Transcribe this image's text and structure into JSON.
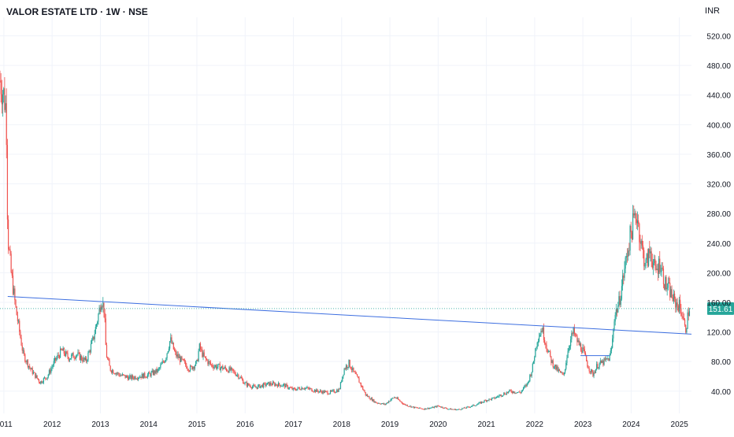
{
  "header": {
    "title": "VALOR ESTATE LTD · 1W · NSE",
    "currency": "INR"
  },
  "colors": {
    "up": "#26a69a",
    "down": "#ef5350",
    "trendline": "#3d6fe0",
    "price_line": "#26a69a",
    "grid": "#f0f3fa",
    "text": "#131722"
  },
  "chart_data": {
    "type": "candlestick",
    "title": "VALOR ESTATE LTD · 1W · NSE",
    "ylabel": "INR",
    "ylim": [
      10,
      545
    ],
    "y_ticks": [
      40,
      80,
      120,
      160,
      200,
      240,
      280,
      320,
      360,
      400,
      440,
      480,
      520
    ],
    "y_tick_labels": [
      "40.00",
      "80.00",
      "120.00",
      "160.00",
      "200.00",
      "240.00",
      "280.00",
      "320.00",
      "360.00",
      "400.00",
      "440.00",
      "480.00",
      "520.00"
    ],
    "x_range": [
      2010.92,
      2025.25
    ],
    "x_ticks": [
      2011,
      2012,
      2013,
      2014,
      2015,
      2016,
      2017,
      2018,
      2019,
      2020,
      2021,
      2022,
      2023,
      2024,
      2025
    ],
    "x_tick_labels": [
      "2011",
      "2012",
      "2013",
      "2014",
      "2015",
      "2016",
      "2017",
      "2018",
      "2019",
      "2020",
      "2021",
      "2022",
      "2023",
      "2024",
      "2025"
    ],
    "last_price": 151.61,
    "last_price_label": "151.61",
    "close_path": [
      [
        2010.92,
        460
      ],
      [
        2011.0,
        440
      ],
      [
        2011.05,
        420
      ],
      [
        2011.08,
        250
      ],
      [
        2011.15,
        200
      ],
      [
        2011.25,
        150
      ],
      [
        2011.4,
        90
      ],
      [
        2011.55,
        70
      ],
      [
        2011.75,
        52
      ],
      [
        2011.9,
        60
      ],
      [
        2012.05,
        80
      ],
      [
        2012.2,
        95
      ],
      [
        2012.35,
        85
      ],
      [
        2012.5,
        90
      ],
      [
        2012.7,
        80
      ],
      [
        2012.85,
        110
      ],
      [
        2012.95,
        140
      ],
      [
        2013.02,
        165
      ],
      [
        2013.08,
        150
      ],
      [
        2013.12,
        90
      ],
      [
        2013.2,
        70
      ],
      [
        2013.4,
        62
      ],
      [
        2013.6,
        58
      ],
      [
        2013.8,
        60
      ],
      [
        2014.0,
        62
      ],
      [
        2014.2,
        68
      ],
      [
        2014.35,
        85
      ],
      [
        2014.45,
        110
      ],
      [
        2014.55,
        90
      ],
      [
        2014.7,
        80
      ],
      [
        2014.85,
        70
      ],
      [
        2015.0,
        78
      ],
      [
        2015.05,
        100
      ],
      [
        2015.15,
        85
      ],
      [
        2015.3,
        75
      ],
      [
        2015.5,
        72
      ],
      [
        2015.7,
        68
      ],
      [
        2015.85,
        62
      ],
      [
        2016.0,
        50
      ],
      [
        2016.2,
        45
      ],
      [
        2016.5,
        50
      ],
      [
        2016.8,
        48
      ],
      [
        2017.0,
        42
      ],
      [
        2017.2,
        45
      ],
      [
        2017.5,
        40
      ],
      [
        2017.75,
        38
      ],
      [
        2017.95,
        42
      ],
      [
        2018.05,
        70
      ],
      [
        2018.15,
        78
      ],
      [
        2018.25,
        65
      ],
      [
        2018.35,
        55
      ],
      [
        2018.5,
        35
      ],
      [
        2018.7,
        25
      ],
      [
        2018.9,
        22
      ],
      [
        2019.0,
        28
      ],
      [
        2019.1,
        32
      ],
      [
        2019.3,
        22
      ],
      [
        2019.5,
        18
      ],
      [
        2019.7,
        16
      ],
      [
        2019.9,
        18
      ],
      [
        2020.0,
        20
      ],
      [
        2020.2,
        16
      ],
      [
        2020.4,
        15
      ],
      [
        2020.6,
        18
      ],
      [
        2020.8,
        22
      ],
      [
        2021.0,
        28
      ],
      [
        2021.15,
        30
      ],
      [
        2021.3,
        35
      ],
      [
        2021.5,
        40
      ],
      [
        2021.7,
        38
      ],
      [
        2021.85,
        50
      ],
      [
        2021.95,
        70
      ],
      [
        2022.05,
        110
      ],
      [
        2022.15,
        125
      ],
      [
        2022.25,
        100
      ],
      [
        2022.35,
        80
      ],
      [
        2022.45,
        70
      ],
      [
        2022.6,
        60
      ],
      [
        2022.7,
        100
      ],
      [
        2022.8,
        120
      ],
      [
        2022.9,
        105
      ],
      [
        2023.0,
        95
      ],
      [
        2023.1,
        75
      ],
      [
        2023.2,
        62
      ],
      [
        2023.3,
        75
      ],
      [
        2023.45,
        80
      ],
      [
        2023.55,
        85
      ],
      [
        2023.6,
        100
      ],
      [
        2023.65,
        140
      ],
      [
        2023.75,
        160
      ],
      [
        2023.85,
        200
      ],
      [
        2023.95,
        240
      ],
      [
        2024.05,
        270
      ],
      [
        2024.12,
        280
      ],
      [
        2024.2,
        240
      ],
      [
        2024.3,
        210
      ],
      [
        2024.4,
        230
      ],
      [
        2024.5,
        200
      ],
      [
        2024.6,
        215
      ],
      [
        2024.7,
        185
      ],
      [
        2024.8,
        175
      ],
      [
        2024.9,
        160
      ],
      [
        2025.0,
        155
      ],
      [
        2025.08,
        140
      ],
      [
        2025.12,
        120
      ],
      [
        2025.2,
        151.61
      ]
    ],
    "trendlines": [
      {
        "x": [
          2011.08,
          2025.25
        ],
        "y": [
          168,
          117
        ]
      },
      {
        "x": [
          2022.95,
          2023.55
        ],
        "y": [
          88,
          88
        ]
      }
    ],
    "grid": true,
    "legend": "none"
  }
}
